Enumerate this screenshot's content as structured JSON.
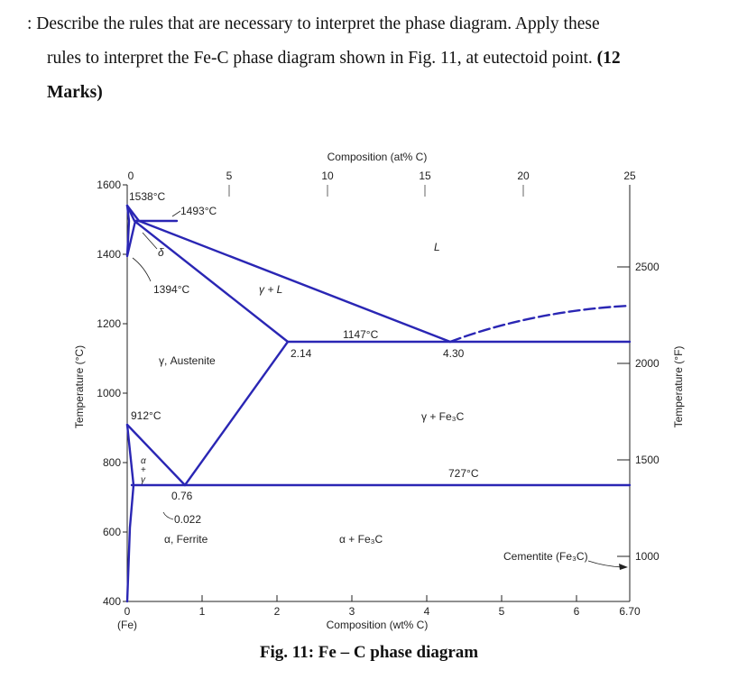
{
  "question": {
    "line1": ": Describe the rules that are necessary to interpret the phase diagram. Apply these",
    "line2": "rules to interpret the Fe-C phase diagram shown in Fig. 11, at eutectoid point.",
    "marks_open": "(12",
    "marks_close": "Marks)"
  },
  "figure": {
    "caption": "Fig. 11: Fe – C phase diagram",
    "top_axis_title": "Composition (at% C)",
    "top_ticks": [
      {
        "label": "0",
        "wt": 0.0
      },
      {
        "label": "5",
        "wt": 1.16
      },
      {
        "label": "10",
        "wt": 2.33
      },
      {
        "label": "15",
        "wt": 3.7
      },
      {
        "label": "20",
        "wt": 5.06
      },
      {
        "label": "25",
        "wt": 6.7
      }
    ],
    "bottom_axis_title": "Composition (wt% C)",
    "bottom_ticks": [
      "0",
      "1",
      "2",
      "3",
      "4",
      "5",
      "6"
    ],
    "bottom_end_label": "6.70",
    "fe_label": "(Fe)",
    "left_axis_title": "Temperature (°C)",
    "left_ticks": [
      "1600",
      "1400",
      "1200",
      "1000",
      "800",
      "600",
      "400"
    ],
    "right_axis_title": "Temperature (°F)",
    "right_ticks": [
      "2500",
      "2000",
      "1500",
      "1000"
    ],
    "colors": {
      "lines": "#2a26b4",
      "axes": "#222222"
    },
    "labels": {
      "t1538": "1538°C",
      "t1493": "1493°C",
      "delta": "δ",
      "t1394": "1394°C",
      "gamma_l": "γ + L",
      "liquid": "L",
      "t1147": "1147°C",
      "c214": "2.14",
      "c430": "4.30",
      "austenite": "γ, Austenite",
      "t912": "912°C",
      "gamma_fe3c": "γ + Fe₃C",
      "alpha": "α",
      "plus": "+",
      "gamma": "γ",
      "t727": "727°C",
      "c076": "0.76",
      "c0022": "0.022",
      "ferrite": "α, Ferrite",
      "alpha_fe3c": "α + Fe₃C",
      "cementite": "Cementite (Fe₃C)"
    }
  }
}
